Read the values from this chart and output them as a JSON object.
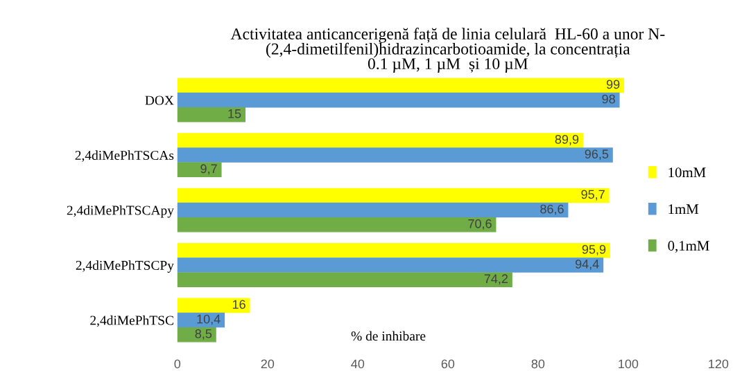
{
  "chart_data": {
    "type": "bar",
    "orientation": "horizontal",
    "title": "Activitatea anticancerigenă față de linia celulară  HL-60 a unor N-\n(2,4-dimetilfenil)hidrazincarbotioamide, la concentrația\n0.1 µM, 1 µM  și 10 µM",
    "xlabel": "% de inhibare",
    "categories": [
      "DOX",
      "2,4diMePhTSCAs",
      "2,4diMePhTSCApy",
      "2,4diMePhTSCPy",
      "2,4diMePhTSC"
    ],
    "series": [
      {
        "name": "10mM",
        "color": "#ffff00",
        "values": [
          99,
          89.9,
          95.7,
          95.9,
          16
        ],
        "value_labels": [
          "99",
          "89,9",
          "95,7",
          "95,9",
          "16"
        ]
      },
      {
        "name": "1mM",
        "color": "#5b9bd5",
        "values": [
          98,
          96.5,
          86.6,
          94.4,
          10.4
        ],
        "value_labels": [
          "98",
          "96,5",
          "86,6",
          "94,4",
          "10,4"
        ]
      },
      {
        "name": "0,1mM",
        "color": "#70ad47",
        "values": [
          15,
          9.7,
          70.6,
          74.2,
          8.5
        ],
        "value_labels": [
          "15",
          "9,7",
          "70,6",
          "74,2",
          "8,5"
        ]
      }
    ],
    "xlim": [
      0,
      120
    ],
    "xticks": [
      0,
      20,
      40,
      60,
      80,
      100,
      120
    ],
    "grid": false,
    "legend": "right"
  }
}
